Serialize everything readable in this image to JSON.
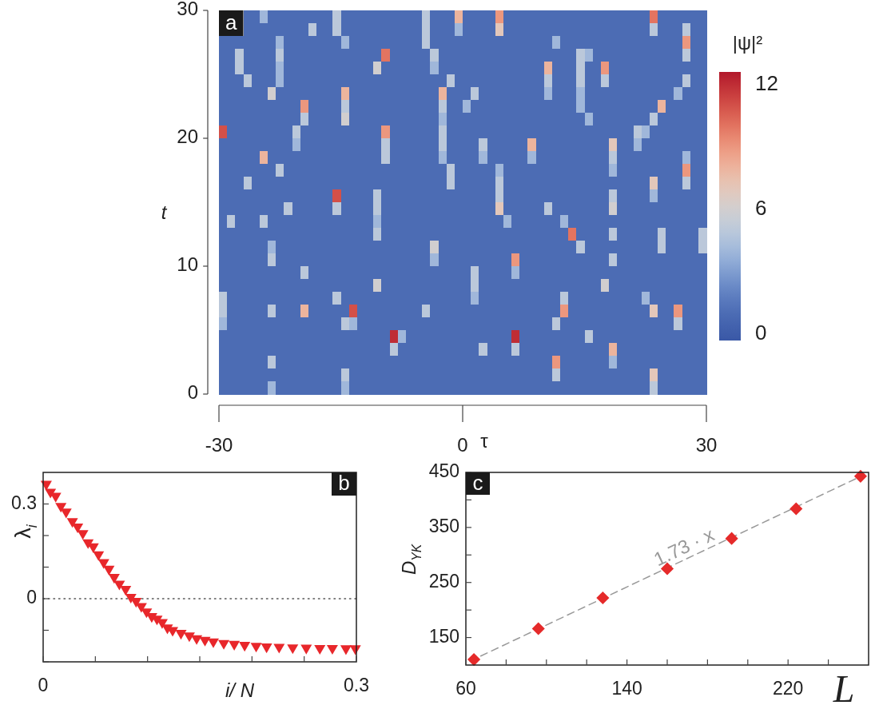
{
  "chart_data": [
    {
      "type": "heatmap",
      "title": "a",
      "xlabel": "τ",
      "ylabel": "t",
      "clabel": "|ψ|²",
      "xlim": [
        -30,
        30
      ],
      "xticks": [
        -30,
        0,
        30
      ],
      "ylim": [
        0,
        30
      ],
      "yticks": [
        0,
        10,
        20,
        30
      ],
      "clim": [
        -0.3,
        12.6
      ],
      "cticks": [
        0,
        6,
        12
      ],
      "cells": [
        [
          null,
          null,
          null,
          1,
          1,
          4,
          1,
          1,
          1,
          1,
          1,
          1,
          1,
          1,
          5,
          1,
          1,
          1,
          1,
          1,
          1,
          1,
          1,
          1,
          1,
          5,
          1,
          1,
          1,
          8,
          1,
          1,
          1,
          1,
          9,
          1,
          1,
          1,
          1,
          1,
          1,
          1,
          1,
          1,
          1,
          1,
          1,
          1,
          1,
          1,
          1,
          1,
          1,
          10,
          1,
          1,
          1,
          1,
          1,
          1
        ],
        [
          null,
          null,
          null,
          1,
          1,
          1,
          1,
          1,
          1,
          1,
          1,
          5,
          1,
          1,
          5,
          1,
          1,
          1,
          1,
          1,
          1,
          1,
          1,
          1,
          1,
          5,
          1,
          1,
          1,
          4,
          1,
          1,
          1,
          1,
          7,
          1,
          1,
          1,
          1,
          1,
          1,
          1,
          1,
          1,
          1,
          1,
          1,
          1,
          1,
          1,
          1,
          1,
          1,
          5,
          1,
          1,
          1,
          5,
          1,
          1
        ],
        [
          1,
          1,
          1,
          1,
          1,
          1,
          1,
          4,
          1,
          1,
          1,
          1,
          1,
          1,
          1,
          4,
          1,
          1,
          1,
          1,
          1,
          1,
          1,
          1,
          1,
          5,
          1,
          1,
          1,
          1,
          1,
          1,
          1,
          1,
          1,
          1,
          1,
          1,
          1,
          1,
          1,
          4,
          1,
          1,
          1,
          1,
          1,
          1,
          1,
          1,
          1,
          1,
          1,
          1,
          1,
          1,
          1,
          9,
          1,
          1
        ],
        [
          1,
          1,
          5,
          1,
          1,
          1,
          1,
          5,
          1,
          1,
          1,
          1,
          1,
          1,
          1,
          1,
          1,
          1,
          1,
          1,
          10,
          1,
          1,
          1,
          1,
          1,
          5,
          1,
          1,
          1,
          1,
          1,
          1,
          1,
          1,
          1,
          1,
          1,
          1,
          1,
          1,
          1,
          1,
          1,
          5,
          4,
          1,
          1,
          1,
          1,
          1,
          1,
          1,
          1,
          1,
          1,
          1,
          5,
          1,
          1
        ],
        [
          1,
          1,
          5,
          1,
          1,
          1,
          1,
          4,
          1,
          1,
          1,
          1,
          1,
          1,
          1,
          1,
          1,
          1,
          1,
          6,
          1,
          1,
          1,
          1,
          1,
          1,
          4,
          1,
          1,
          1,
          1,
          1,
          1,
          1,
          1,
          1,
          1,
          1,
          1,
          1,
          8,
          1,
          1,
          1,
          5,
          1,
          1,
          9,
          1,
          1,
          1,
          1,
          1,
          1,
          1,
          1,
          1,
          1,
          1,
          1
        ],
        [
          1,
          1,
          1,
          5,
          1,
          1,
          1,
          4,
          1,
          1,
          1,
          1,
          1,
          1,
          1,
          1,
          1,
          1,
          1,
          1,
          1,
          1,
          1,
          1,
          1,
          1,
          1,
          1,
          5,
          1,
          1,
          1,
          1,
          1,
          1,
          1,
          1,
          1,
          1,
          1,
          5,
          1,
          1,
          1,
          5,
          1,
          1,
          5,
          1,
          1,
          1,
          1,
          1,
          1,
          1,
          1,
          1,
          5,
          1,
          1
        ],
        [
          1,
          1,
          1,
          1,
          1,
          1,
          6,
          1,
          1,
          1,
          1,
          1,
          1,
          1,
          1,
          8,
          1,
          1,
          1,
          1,
          1,
          1,
          1,
          1,
          1,
          1,
          1,
          8,
          1,
          1,
          1,
          5,
          1,
          1,
          1,
          1,
          1,
          1,
          1,
          1,
          4,
          1,
          1,
          1,
          4,
          1,
          1,
          1,
          1,
          1,
          1,
          1,
          1,
          1,
          1,
          1,
          4,
          1,
          1,
          1
        ],
        [
          1,
          1,
          1,
          1,
          1,
          1,
          1,
          1,
          1,
          1,
          9,
          1,
          1,
          1,
          1,
          5,
          1,
          1,
          1,
          1,
          1,
          1,
          1,
          1,
          1,
          1,
          1,
          5,
          1,
          1,
          4,
          1,
          1,
          1,
          1,
          1,
          1,
          1,
          1,
          1,
          1,
          1,
          1,
          1,
          4,
          1,
          1,
          1,
          1,
          1,
          1,
          1,
          1,
          1,
          8,
          1,
          1,
          1,
          1,
          1
        ],
        [
          1,
          1,
          1,
          1,
          1,
          1,
          1,
          1,
          1,
          1,
          5,
          1,
          1,
          1,
          1,
          6,
          1,
          1,
          1,
          1,
          1,
          1,
          1,
          1,
          1,
          1,
          1,
          4,
          1,
          1,
          1,
          1,
          1,
          1,
          1,
          1,
          1,
          1,
          1,
          1,
          1,
          1,
          1,
          1,
          1,
          4,
          1,
          1,
          1,
          1,
          1,
          1,
          1,
          5,
          1,
          1,
          1,
          1,
          1,
          1
        ],
        [
          11,
          1,
          1,
          1,
          1,
          1,
          1,
          1,
          1,
          5,
          1,
          1,
          1,
          1,
          1,
          1,
          1,
          1,
          1,
          1,
          9,
          1,
          1,
          1,
          1,
          1,
          1,
          5,
          1,
          1,
          1,
          1,
          1,
          1,
          1,
          1,
          1,
          1,
          1,
          1,
          1,
          1,
          1,
          1,
          1,
          1,
          1,
          1,
          1,
          1,
          1,
          5,
          4,
          1,
          1,
          1,
          1,
          1,
          1,
          1
        ],
        [
          1,
          1,
          1,
          1,
          1,
          1,
          1,
          1,
          1,
          4,
          1,
          1,
          1,
          1,
          1,
          1,
          1,
          1,
          1,
          1,
          5,
          1,
          1,
          1,
          1,
          1,
          1,
          5,
          1,
          1,
          1,
          1,
          5,
          1,
          1,
          1,
          1,
          1,
          8,
          1,
          1,
          1,
          1,
          1,
          1,
          1,
          1,
          1,
          7,
          1,
          1,
          4,
          1,
          1,
          1,
          1,
          1,
          1,
          1,
          1
        ],
        [
          1,
          1,
          1,
          1,
          1,
          8,
          1,
          1,
          1,
          1,
          1,
          1,
          1,
          1,
          1,
          1,
          1,
          1,
          1,
          1,
          5,
          1,
          1,
          1,
          1,
          1,
          1,
          4,
          1,
          1,
          1,
          1,
          4,
          1,
          1,
          1,
          1,
          1,
          4,
          1,
          1,
          1,
          1,
          1,
          1,
          1,
          1,
          1,
          5,
          1,
          1,
          1,
          1,
          1,
          1,
          1,
          1,
          4,
          1,
          1
        ],
        [
          1,
          1,
          1,
          1,
          1,
          1,
          1,
          5,
          1,
          1,
          1,
          1,
          1,
          1,
          1,
          1,
          1,
          1,
          1,
          1,
          1,
          1,
          1,
          1,
          1,
          1,
          1,
          1,
          5,
          1,
          1,
          1,
          1,
          1,
          4,
          1,
          1,
          1,
          1,
          1,
          1,
          1,
          1,
          1,
          1,
          1,
          1,
          1,
          4,
          1,
          1,
          1,
          1,
          1,
          1,
          1,
          1,
          9,
          1,
          1
        ],
        [
          1,
          1,
          1,
          5,
          1,
          1,
          1,
          1,
          1,
          1,
          1,
          1,
          1,
          1,
          1,
          1,
          1,
          1,
          1,
          1,
          1,
          1,
          1,
          1,
          1,
          1,
          1,
          1,
          5,
          1,
          1,
          1,
          1,
          1,
          5,
          1,
          1,
          1,
          1,
          1,
          1,
          1,
          1,
          1,
          1,
          1,
          1,
          1,
          1,
          1,
          1,
          1,
          1,
          7,
          1,
          1,
          1,
          5,
          1,
          1
        ],
        [
          1,
          1,
          1,
          1,
          1,
          1,
          1,
          1,
          1,
          1,
          1,
          1,
          1,
          1,
          11,
          1,
          1,
          1,
          1,
          5,
          1,
          1,
          1,
          1,
          1,
          1,
          1,
          1,
          1,
          1,
          1,
          1,
          1,
          1,
          5,
          1,
          1,
          1,
          1,
          1,
          1,
          1,
          1,
          1,
          1,
          1,
          1,
          1,
          5,
          1,
          1,
          1,
          1,
          4,
          1,
          1,
          1,
          1,
          1,
          1
        ],
        [
          1,
          1,
          1,
          1,
          1,
          1,
          1,
          1,
          5,
          1,
          1,
          1,
          1,
          1,
          5,
          1,
          1,
          1,
          1,
          5,
          1,
          1,
          1,
          1,
          1,
          1,
          1,
          1,
          1,
          1,
          1,
          1,
          1,
          1,
          7,
          1,
          1,
          1,
          1,
          1,
          5,
          1,
          1,
          1,
          1,
          1,
          1,
          1,
          6,
          1,
          1,
          1,
          1,
          1,
          1,
          1,
          1,
          1,
          1,
          1
        ],
        [
          1,
          5,
          1,
          1,
          1,
          5,
          1,
          1,
          1,
          1,
          1,
          1,
          1,
          1,
          1,
          1,
          1,
          1,
          1,
          4,
          1,
          1,
          1,
          1,
          1,
          1,
          1,
          1,
          1,
          1,
          1,
          1,
          1,
          1,
          1,
          4,
          1,
          1,
          1,
          1,
          1,
          1,
          4,
          1,
          1,
          1,
          1,
          1,
          1,
          1,
          1,
          1,
          1,
          1,
          1,
          1,
          1,
          1,
          1,
          1
        ],
        [
          1,
          1,
          1,
          1,
          1,
          1,
          1,
          1,
          1,
          1,
          1,
          1,
          1,
          1,
          1,
          1,
          1,
          1,
          1,
          5,
          1,
          1,
          1,
          1,
          1,
          1,
          1,
          1,
          1,
          1,
          1,
          1,
          1,
          1,
          1,
          1,
          1,
          1,
          1,
          1,
          1,
          1,
          1,
          10,
          1,
          1,
          1,
          1,
          5,
          1,
          1,
          1,
          1,
          1,
          5,
          1,
          1,
          1,
          1,
          5
        ],
        [
          1,
          1,
          1,
          1,
          1,
          1,
          4,
          1,
          1,
          1,
          1,
          1,
          1,
          1,
          1,
          1,
          1,
          1,
          1,
          1,
          1,
          1,
          1,
          1,
          1,
          1,
          6,
          1,
          1,
          1,
          1,
          1,
          1,
          1,
          1,
          1,
          1,
          1,
          1,
          1,
          1,
          1,
          1,
          1,
          5,
          1,
          1,
          1,
          1,
          1,
          1,
          1,
          1,
          1,
          5,
          1,
          1,
          1,
          1,
          5
        ],
        [
          1,
          1,
          1,
          1,
          1,
          1,
          5,
          1,
          1,
          1,
          1,
          1,
          1,
          1,
          1,
          1,
          1,
          1,
          1,
          1,
          1,
          1,
          1,
          1,
          1,
          1,
          4,
          1,
          1,
          1,
          1,
          1,
          1,
          1,
          1,
          1,
          9,
          1,
          1,
          1,
          1,
          1,
          1,
          1,
          1,
          1,
          1,
          1,
          5,
          1,
          1,
          1,
          1,
          1,
          1,
          1,
          1,
          1,
          1,
          1
        ],
        [
          1,
          1,
          1,
          1,
          1,
          1,
          1,
          1,
          1,
          1,
          5,
          1,
          1,
          1,
          1,
          1,
          1,
          1,
          1,
          1,
          1,
          1,
          1,
          1,
          1,
          1,
          1,
          1,
          1,
          1,
          1,
          5,
          1,
          1,
          1,
          1,
          4,
          1,
          1,
          1,
          1,
          1,
          1,
          1,
          1,
          1,
          1,
          1,
          1,
          1,
          1,
          1,
          1,
          1,
          1,
          1,
          1,
          1,
          1,
          1
        ],
        [
          1,
          1,
          1,
          1,
          1,
          1,
          1,
          1,
          1,
          1,
          1,
          1,
          1,
          1,
          1,
          1,
          1,
          1,
          1,
          6,
          1,
          1,
          1,
          1,
          1,
          1,
          1,
          1,
          1,
          1,
          1,
          5,
          1,
          1,
          1,
          1,
          1,
          1,
          1,
          1,
          1,
          1,
          1,
          1,
          1,
          1,
          1,
          6,
          1,
          1,
          1,
          1,
          1,
          1,
          1,
          1,
          1,
          1,
          1,
          1
        ],
        [
          5,
          1,
          1,
          1,
          1,
          1,
          1,
          1,
          1,
          1,
          1,
          1,
          1,
          1,
          5,
          1,
          1,
          1,
          1,
          1,
          1,
          1,
          1,
          1,
          1,
          1,
          1,
          1,
          1,
          1,
          1,
          4,
          1,
          1,
          1,
          1,
          1,
          1,
          1,
          1,
          1,
          1,
          5,
          1,
          1,
          1,
          1,
          1,
          1,
          1,
          1,
          1,
          4,
          1,
          1,
          1,
          1,
          1,
          1,
          1
        ],
        [
          5,
          1,
          1,
          1,
          1,
          1,
          5,
          1,
          1,
          1,
          8,
          1,
          1,
          1,
          1,
          1,
          11,
          1,
          1,
          1,
          1,
          1,
          1,
          1,
          1,
          5,
          1,
          1,
          1,
          1,
          1,
          1,
          1,
          1,
          1,
          1,
          1,
          1,
          1,
          1,
          1,
          1,
          9,
          1,
          1,
          1,
          1,
          1,
          1,
          1,
          1,
          1,
          1,
          7,
          1,
          1,
          9,
          1,
          1,
          1
        ],
        [
          4,
          1,
          1,
          1,
          1,
          1,
          1,
          1,
          1,
          1,
          1,
          1,
          1,
          1,
          1,
          5,
          4,
          1,
          1,
          1,
          1,
          1,
          1,
          1,
          1,
          1,
          1,
          1,
          1,
          1,
          1,
          1,
          1,
          1,
          1,
          1,
          1,
          1,
          1,
          1,
          1,
          5,
          1,
          1,
          1,
          1,
          1,
          1,
          1,
          1,
          1,
          1,
          1,
          1,
          1,
          1,
          5,
          1,
          1,
          1
        ],
        [
          1,
          1,
          1,
          1,
          1,
          1,
          1,
          1,
          1,
          1,
          1,
          1,
          1,
          1,
          1,
          1,
          1,
          1,
          1,
          1,
          1,
          12,
          4,
          1,
          1,
          1,
          1,
          1,
          1,
          1,
          1,
          1,
          1,
          1,
          1,
          1,
          12,
          1,
          1,
          1,
          1,
          1,
          1,
          1,
          1,
          5,
          1,
          1,
          1,
          1,
          1,
          1,
          1,
          1,
          1,
          1,
          1,
          1,
          1,
          1
        ],
        [
          1,
          1,
          1,
          1,
          1,
          1,
          1,
          1,
          1,
          1,
          1,
          1,
          1,
          1,
          1,
          1,
          1,
          1,
          1,
          1,
          1,
          5,
          1,
          1,
          1,
          1,
          1,
          1,
          1,
          1,
          1,
          1,
          5,
          1,
          1,
          1,
          5,
          1,
          1,
          1,
          1,
          1,
          1,
          1,
          1,
          1,
          1,
          1,
          8,
          1,
          1,
          1,
          1,
          1,
          1,
          1,
          1,
          1,
          1,
          1
        ],
        [
          1,
          1,
          1,
          1,
          1,
          1,
          5,
          1,
          1,
          1,
          1,
          1,
          1,
          1,
          1,
          1,
          1,
          1,
          1,
          1,
          1,
          1,
          1,
          1,
          1,
          1,
          1,
          1,
          1,
          1,
          1,
          1,
          1,
          1,
          1,
          1,
          1,
          1,
          1,
          1,
          1,
          9,
          1,
          1,
          1,
          1,
          1,
          1,
          4,
          1,
          1,
          1,
          1,
          1,
          1,
          1,
          1,
          1,
          1,
          1
        ],
        [
          1,
          1,
          1,
          1,
          1,
          1,
          1,
          1,
          1,
          1,
          1,
          1,
          1,
          1,
          1,
          5,
          1,
          1,
          1,
          1,
          1,
          1,
          1,
          1,
          1,
          1,
          1,
          1,
          1,
          1,
          1,
          1,
          1,
          1,
          1,
          1,
          1,
          1,
          1,
          1,
          1,
          5,
          1,
          1,
          1,
          1,
          1,
          1,
          1,
          1,
          1,
          1,
          1,
          7,
          1,
          1,
          1,
          1,
          1,
          1
        ],
        [
          1,
          1,
          1,
          1,
          1,
          1,
          4,
          1,
          1,
          1,
          1,
          1,
          1,
          1,
          1,
          4,
          1,
          1,
          1,
          1,
          1,
          1,
          1,
          1,
          1,
          1,
          1,
          1,
          1,
          1,
          1,
          1,
          1,
          1,
          1,
          1,
          1,
          1,
          1,
          1,
          1,
          1,
          1,
          1,
          1,
          1,
          1,
          1,
          1,
          1,
          1,
          1,
          1,
          5,
          1,
          1,
          1,
          1,
          1,
          1
        ]
      ]
    },
    {
      "type": "scatter",
      "title": "b",
      "xlabel": "i/ N",
      "ylabel": "λ$_{i}$",
      "marker": "triangle",
      "xlim": [
        0,
        0.3
      ],
      "xticks": [
        0,
        {
          "value": 0.05,
          "label": null
        },
        {
          "value": 0.1,
          "label": null
        },
        {
          "value": 0.15,
          "label": null
        },
        {
          "value": 0.2,
          "label": null
        },
        {
          "value": 0.25,
          "label": null
        },
        0.3
      ],
      "ylim": [
        -0.2,
        0.4
      ],
      "yticks": [
        {
          "value": -0.2,
          "label": null
        },
        {
          "value": -0.1,
          "label": null
        },
        0,
        {
          "value": 0.1,
          "label": null
        },
        {
          "value": 0.2,
          "label": null
        },
        0.3
      ],
      "ref_lines": [
        {
          "axis": "y",
          "value": 0,
          "color": "#555555",
          "line_style": "dotted"
        }
      ],
      "series": [
        {
          "color": "#e8272b",
          "x": [
            0.003,
            0.007,
            0.012,
            0.017,
            0.022,
            0.028,
            0.033,
            0.038,
            0.043,
            0.048,
            0.053,
            0.058,
            0.063,
            0.068,
            0.073,
            0.079,
            0.084,
            0.089,
            0.094,
            0.099,
            0.104,
            0.109,
            0.114,
            0.119,
            0.124,
            0.132,
            0.14,
            0.147,
            0.155,
            0.163,
            0.173,
            0.183,
            0.193,
            0.204,
            0.214,
            0.226,
            0.239,
            0.252,
            0.265,
            0.277,
            0.29,
            0.299
          ],
          "values": [
            0.363,
            0.338,
            0.325,
            0.293,
            0.275,
            0.245,
            0.228,
            0.207,
            0.178,
            0.165,
            0.14,
            0.115,
            0.094,
            0.068,
            0.047,
            0.03,
            0.005,
            -0.008,
            -0.024,
            -0.041,
            -0.056,
            -0.064,
            -0.075,
            -0.092,
            -0.1,
            -0.109,
            -0.117,
            -0.126,
            -0.131,
            -0.136,
            -0.141,
            -0.144,
            -0.147,
            -0.15,
            -0.152,
            -0.153,
            -0.155,
            -0.156,
            -0.157,
            -0.157,
            -0.158,
            -0.158
          ]
        }
      ]
    },
    {
      "type": "scatter",
      "title": "c",
      "xlabel": "L",
      "ylabel": "D$_{YK}$",
      "xlim": [
        60,
        260
      ],
      "xticks": [
        60,
        {
          "value": 80,
          "label": null
        },
        {
          "value": 100,
          "label": null
        },
        {
          "value": 120,
          "label": null
        },
        140,
        {
          "value": 160,
          "label": null
        },
        {
          "value": 180,
          "label": null
        },
        {
          "value": 200,
          "label": null
        },
        220,
        {
          "value": 240,
          "label": null
        }
      ],
      "ylim": [
        100,
        450
      ],
      "yticks": [
        150,
        {
          "value": 200,
          "label": null
        },
        250,
        {
          "value": 300,
          "label": null
        },
        350,
        {
          "value": 400,
          "label": null
        },
        450
      ],
      "annotations": [
        "1.73 · x"
      ],
      "series": [
        {
          "type": "line",
          "color": "#999999",
          "line_style": "dashed",
          "x": [
            62,
            258
          ],
          "values": [
            107,
            446
          ]
        },
        {
          "color": "#e52a2a",
          "marker": "diamond",
          "x": [
            64,
            96,
            128,
            160,
            192,
            224,
            256
          ],
          "values": [
            110,
            166,
            222,
            275,
            330,
            384,
            443
          ]
        }
      ]
    }
  ]
}
